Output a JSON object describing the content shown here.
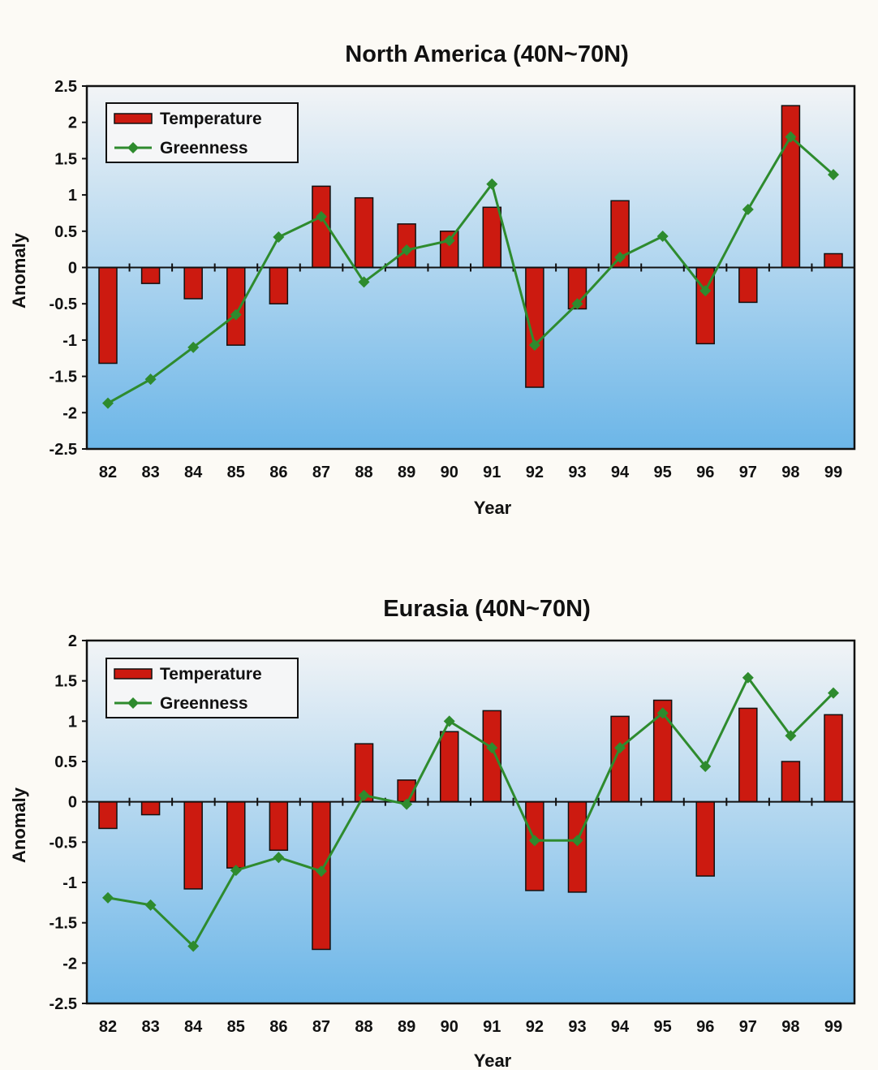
{
  "colors": {
    "temperature": "#cc1a10",
    "greenness": "#2e8b2e",
    "plot_top": "#f2f4f6",
    "plot_bottom": "#6cb6e8"
  },
  "chart_data": [
    {
      "type": "bar",
      "title": "North America (40N~70N)",
      "xlabel": "Year",
      "ylabel": "Anomaly",
      "categories": [
        "82",
        "83",
        "84",
        "85",
        "86",
        "87",
        "88",
        "89",
        "90",
        "91",
        "92",
        "93",
        "94",
        "95",
        "96",
        "97",
        "98",
        "99"
      ],
      "ylim": [
        -2.5,
        2.5
      ],
      "yticks": [
        2.5,
        2,
        1.5,
        1,
        0.5,
        0,
        -0.5,
        -1,
        -1.5,
        -2,
        -2.5
      ],
      "ytick_labels": [
        "2.5",
        "2",
        "1.5",
        "1",
        "0.5",
        "0",
        "-0.5",
        "-1",
        "-1.5",
        "-2",
        "-2.5"
      ],
      "legend": "top-left",
      "series": [
        {
          "name": "Temperature",
          "kind": "bar",
          "values": [
            -1.32,
            -0.22,
            -0.43,
            -1.07,
            -0.5,
            1.12,
            0.96,
            0.6,
            0.5,
            0.83,
            -1.65,
            -0.57,
            0.92,
            0.0,
            -1.05,
            -0.48,
            2.23,
            0.19
          ]
        },
        {
          "name": "Greenness",
          "kind": "line",
          "values": [
            -1.87,
            -1.54,
            -1.1,
            -0.65,
            0.42,
            0.7,
            -0.2,
            0.24,
            0.37,
            1.15,
            -1.07,
            -0.5,
            0.14,
            0.43,
            -0.32,
            0.8,
            1.8,
            1.28
          ]
        }
      ]
    },
    {
      "type": "bar",
      "title": "Eurasia (40N~70N)",
      "xlabel": "Year",
      "ylabel": "Anomaly",
      "categories": [
        "82",
        "83",
        "84",
        "85",
        "86",
        "87",
        "88",
        "89",
        "90",
        "91",
        "92",
        "93",
        "94",
        "95",
        "96",
        "97",
        "98",
        "99"
      ],
      "ylim": [
        -2.5,
        2
      ],
      "yticks": [
        2,
        1.5,
        1,
        0.5,
        0,
        -0.5,
        -1,
        -1.5,
        -2,
        -2.5
      ],
      "ytick_labels": [
        "2",
        "1.5",
        "1",
        "0.5",
        "0",
        "-0.5",
        "-1",
        "-1.5",
        "-2",
        "-2.5"
      ],
      "legend": "top-left",
      "series": [
        {
          "name": "Temperature",
          "kind": "bar",
          "values": [
            -0.33,
            -0.16,
            -1.08,
            -0.82,
            -0.6,
            -1.83,
            0.72,
            0.27,
            0.87,
            1.13,
            -1.1,
            -1.12,
            1.06,
            1.26,
            -0.92,
            1.16,
            0.5,
            1.08
          ]
        },
        {
          "name": "Greenness",
          "kind": "line",
          "values": [
            -1.19,
            -1.28,
            -1.79,
            -0.85,
            -0.69,
            -0.86,
            0.08,
            -0.03,
            1.0,
            0.67,
            -0.48,
            -0.48,
            0.67,
            1.1,
            0.44,
            1.54,
            0.82,
            1.35
          ]
        }
      ]
    }
  ]
}
